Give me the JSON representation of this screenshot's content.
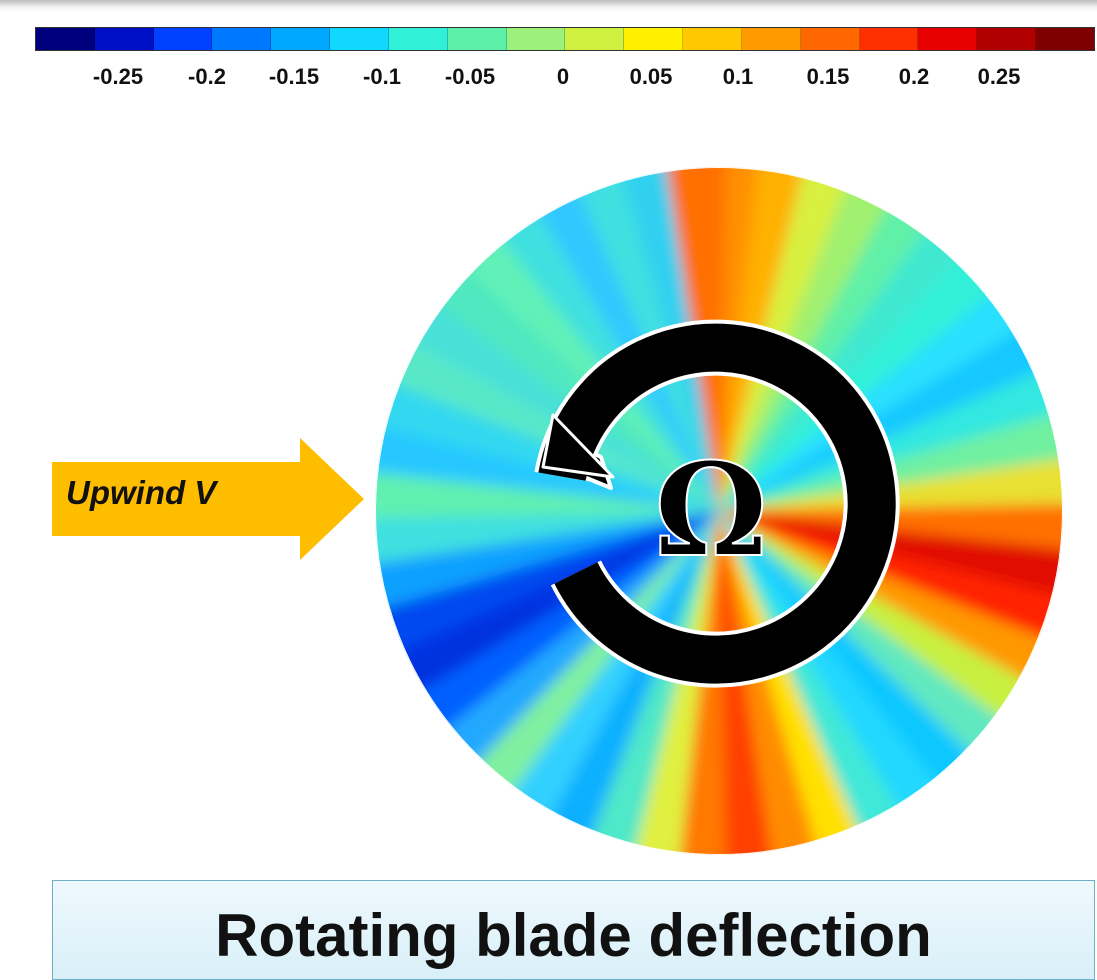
{
  "colorbar": {
    "tick_labels": [
      "-0.25",
      "-0.2",
      "-0.15",
      "-0.1",
      "-0.05",
      "0",
      "0.05",
      "0.1",
      "0.15",
      "0.2",
      "0.25"
    ],
    "colors": [
      "#00007f",
      "#0010c8",
      "#0040ff",
      "#0078ff",
      "#00a8ff",
      "#10d8ff",
      "#30f0d8",
      "#5cf0a8",
      "#9cf07c",
      "#d0f040",
      "#fff000",
      "#ffc800",
      "#ff9a00",
      "#ff6800",
      "#ff3000",
      "#e80000",
      "#b00000",
      "#7f0000"
    ]
  },
  "diagram": {
    "inflow_label": "Upwind V",
    "rotation_symbol": "Ω",
    "title": "Rotating blade deflection",
    "colors": {
      "arrow": "#ffbd00",
      "rotation": "#000000",
      "banner_border": "#6fb0c8"
    }
  }
}
